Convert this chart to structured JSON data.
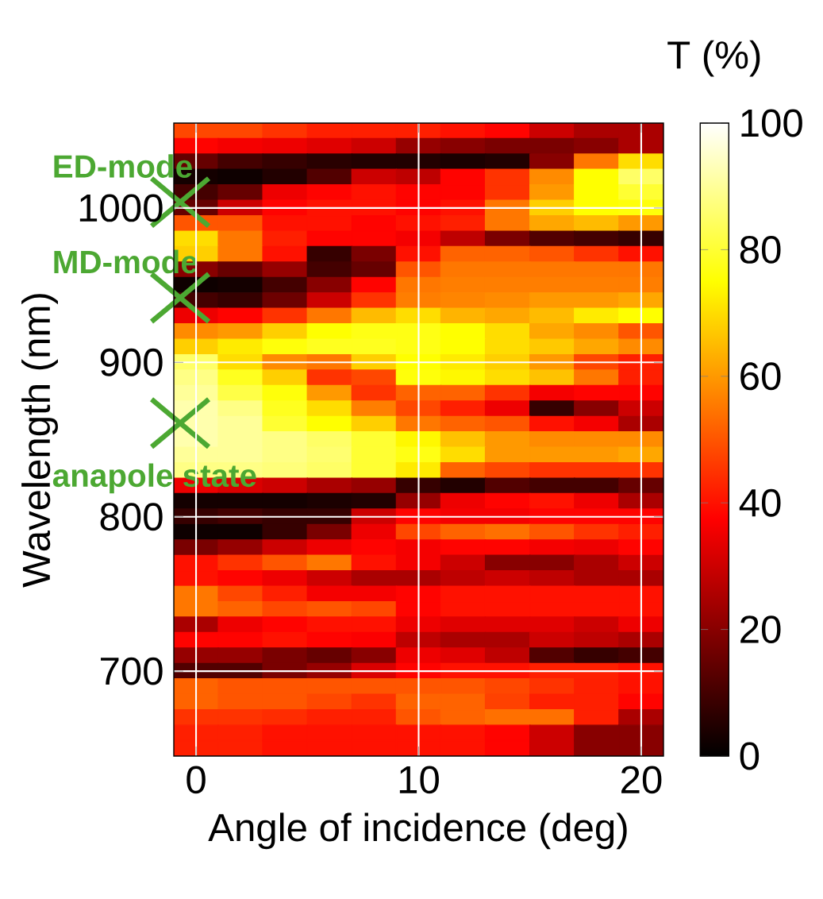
{
  "chart_data": {
    "type": "heatmap",
    "xlabel": "Angle of incidence (deg)",
    "ylabel": "Wavelength (nm)",
    "clabel": "T (%)",
    "categories": [
      "0",
      null,
      null,
      null,
      null,
      "10",
      null,
      null,
      null,
      null,
      "20"
    ],
    "y_categories": [
      null,
      null,
      null,
      null,
      null,
      "1000",
      null,
      null,
      null,
      null,
      null,
      null,
      null,
      null,
      null,
      "900",
      null,
      null,
      null,
      null,
      null,
      null,
      null,
      null,
      null,
      "800",
      null,
      null,
      null,
      null,
      null,
      null,
      null,
      null,
      null,
      "700",
      null,
      null,
      null,
      null,
      null
    ],
    "clim": [
      0,
      100
    ],
    "cticks": [
      0,
      20,
      40,
      60,
      80,
      100
    ],
    "grid": true,
    "cells": [
      [
        48,
        48,
        45,
        42,
        42,
        42,
        40,
        38,
        30,
        25,
        25
      ],
      [
        38,
        36,
        35,
        33,
        30,
        22,
        20,
        18,
        18,
        20,
        25
      ],
      [
        15,
        10,
        8,
        6,
        5,
        5,
        4,
        5,
        20,
        55,
        70
      ],
      [
        3,
        2,
        5,
        12,
        30,
        28,
        38,
        45,
        58,
        75,
        85
      ],
      [
        10,
        15,
        35,
        38,
        40,
        38,
        38,
        45,
        60,
        75,
        80
      ],
      [
        15,
        30,
        38,
        40,
        40,
        38,
        40,
        55,
        68,
        75,
        76
      ],
      [
        50,
        50,
        40,
        40,
        38,
        40,
        42,
        55,
        62,
        65,
        60
      ],
      [
        70,
        55,
        42,
        38,
        38,
        36,
        28,
        18,
        12,
        10,
        8
      ],
      [
        68,
        55,
        40,
        8,
        18,
        40,
        52,
        52,
        50,
        45,
        40
      ],
      [
        20,
        15,
        22,
        10,
        15,
        50,
        55,
        55,
        55,
        55,
        55
      ],
      [
        2,
        3,
        10,
        20,
        38,
        55,
        56,
        56,
        56,
        56,
        56
      ],
      [
        10,
        8,
        16,
        30,
        45,
        56,
        57,
        58,
        60,
        60,
        62
      ],
      [
        35,
        38,
        45,
        55,
        65,
        70,
        64,
        62,
        65,
        72,
        75
      ],
      [
        58,
        60,
        68,
        75,
        77,
        77,
        75,
        70,
        62,
        58,
        50
      ],
      [
        68,
        72,
        76,
        78,
        78,
        77,
        75,
        70,
        67,
        62,
        58
      ],
      [
        85,
        70,
        58,
        55,
        68,
        75,
        72,
        68,
        60,
        48,
        42
      ],
      [
        88,
        78,
        68,
        45,
        48,
        76,
        74,
        70,
        66,
        55,
        42
      ],
      [
        90,
        82,
        76,
        60,
        45,
        52,
        52,
        45,
        36,
        38,
        38
      ],
      [
        92,
        88,
        78,
        70,
        56,
        48,
        42,
        35,
        8,
        20,
        30
      ],
      [
        92,
        90,
        80,
        75,
        68,
        55,
        52,
        50,
        40,
        36,
        25
      ],
      [
        92,
        90,
        88,
        85,
        80,
        74,
        66,
        60,
        58,
        58,
        58
      ],
      [
        90,
        90,
        88,
        86,
        80,
        77,
        70,
        60,
        60,
        60,
        62
      ],
      [
        88,
        88,
        87,
        85,
        80,
        72,
        52,
        48,
        45,
        45,
        45
      ],
      [
        35,
        32,
        30,
        25,
        22,
        8,
        5,
        12,
        10,
        10,
        15
      ],
      [
        3,
        3,
        3,
        4,
        5,
        22,
        35,
        38,
        40,
        35,
        25
      ],
      [
        8,
        10,
        8,
        8,
        30,
        38,
        36,
        36,
        38,
        38,
        38
      ],
      [
        2,
        2,
        8,
        18,
        35,
        48,
        52,
        54,
        50,
        45,
        42
      ],
      [
        18,
        22,
        30,
        35,
        38,
        36,
        38,
        38,
        36,
        35,
        38
      ],
      [
        40,
        45,
        50,
        55,
        40,
        36,
        30,
        20,
        20,
        25,
        30
      ],
      [
        40,
        38,
        35,
        30,
        25,
        25,
        28,
        30,
        28,
        25,
        25
      ],
      [
        55,
        48,
        42,
        36,
        36,
        38,
        40,
        40,
        40,
        40,
        40
      ],
      [
        55,
        52,
        48,
        50,
        48,
        38,
        40,
        40,
        40,
        40,
        40
      ],
      [
        25,
        35,
        38,
        40,
        40,
        35,
        33,
        33,
        33,
        30,
        35
      ],
      [
        38,
        38,
        40,
        38,
        37,
        28,
        25,
        25,
        30,
        28,
        25
      ],
      [
        22,
        22,
        18,
        15,
        20,
        35,
        33,
        28,
        12,
        8,
        10
      ],
      [
        12,
        12,
        18,
        22,
        32,
        38,
        40,
        40,
        42,
        42,
        40
      ],
      [
        52,
        50,
        50,
        50,
        50,
        50,
        50,
        48,
        45,
        42,
        40
      ],
      [
        52,
        50,
        50,
        48,
        45,
        52,
        52,
        47,
        42,
        42,
        38
      ],
      [
        45,
        45,
        44,
        42,
        42,
        50,
        52,
        54,
        54,
        42,
        25
      ],
      [
        42,
        42,
        40,
        40,
        40,
        40,
        40,
        38,
        30,
        20,
        20
      ],
      [
        42,
        42,
        40,
        40,
        40,
        40,
        40,
        38,
        30,
        20,
        20
      ]
    ],
    "annotations": [
      "ED-mode",
      "MD-mode",
      "anapole state"
    ]
  }
}
